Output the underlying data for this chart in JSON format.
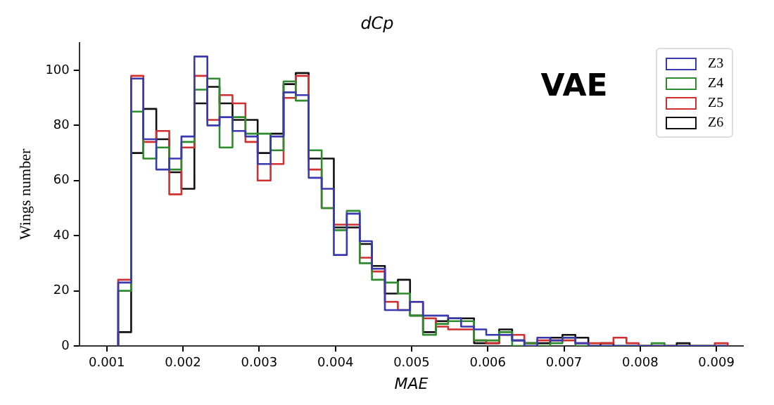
{
  "chart_data": {
    "type": "histogram",
    "title": "dCp",
    "xlabel": "MAE",
    "ylabel": "Wings number",
    "annotations": [
      "VAE"
    ],
    "bins": [
      0.00115,
      0.00132,
      0.00148,
      0.00165,
      0.00182,
      0.00198,
      0.00215,
      0.00232,
      0.00248,
      0.00265,
      0.00282,
      0.00298,
      0.00315,
      0.00332,
      0.00348,
      0.00365,
      0.00382,
      0.00398,
      0.00415,
      0.00432,
      0.00448,
      0.00465,
      0.00482,
      0.00498,
      0.00515,
      0.00532,
      0.00548,
      0.00565,
      0.00582,
      0.00598,
      0.00615,
      0.00632,
      0.00648,
      0.00665,
      0.00682,
      0.00698,
      0.00715,
      0.00732,
      0.00748,
      0.00765,
      0.00782,
      0.00798,
      0.00815,
      0.00832,
      0.00848,
      0.00865,
      0.00882,
      0.00898,
      0.00915
    ],
    "series": [
      {
        "name": "Z3",
        "color": "#3a3ab0",
        "values": [
          23,
          97,
          75,
          64,
          68,
          76,
          105,
          80,
          83,
          78,
          76,
          66,
          76,
          92,
          91,
          61,
          57,
          33,
          48,
          38,
          28,
          13,
          13,
          16,
          11,
          11,
          10,
          7,
          6,
          4,
          4,
          2,
          0,
          3,
          2,
          3,
          1,
          0,
          0,
          0,
          0,
          0,
          0,
          0,
          0,
          0,
          0,
          0
        ]
      },
      {
        "name": "Z4",
        "color": "#2e8b2e",
        "values": [
          20,
          85,
          68,
          72,
          64,
          74,
          93,
          97,
          72,
          83,
          77,
          77,
          71,
          96,
          89,
          71,
          50,
          42,
          49,
          30,
          24,
          23,
          19,
          11,
          4,
          8,
          9,
          9,
          2,
          2,
          5,
          0,
          1,
          0,
          1,
          3,
          0,
          0,
          0,
          0,
          0,
          0,
          1,
          0,
          0,
          0,
          0,
          0
        ]
      },
      {
        "name": "Z5",
        "color": "#d03030",
        "values": [
          24,
          98,
          74,
          78,
          55,
          72,
          98,
          82,
          91,
          88,
          74,
          60,
          66,
          90,
          98,
          64,
          50,
          44,
          44,
          32,
          27,
          16,
          13,
          16,
          10,
          7,
          6,
          6,
          2,
          1,
          4,
          4,
          1,
          2,
          2,
          2,
          1,
          1,
          1,
          3,
          1,
          0,
          0,
          0,
          0,
          0,
          0,
          1
        ]
      },
      {
        "name": "Z6",
        "color": "#111111",
        "values": [
          5,
          70,
          86,
          75,
          63,
          57,
          88,
          94,
          88,
          82,
          82,
          70,
          77,
          95,
          99,
          68,
          68,
          43,
          43,
          37,
          29,
          19,
          24,
          11,
          5,
          9,
          10,
          10,
          1,
          1,
          6,
          2,
          1,
          1,
          3,
          4,
          3,
          0,
          1,
          0,
          0,
          0,
          0,
          0,
          1,
          0,
          0,
          0
        ]
      }
    ],
    "xlim": [
      0.00064,
      0.00935
    ],
    "xticks": [
      0.001,
      0.002,
      0.003,
      0.004,
      0.005,
      0.006,
      0.007,
      0.008,
      0.009
    ],
    "ylim": [
      0,
      110
    ],
    "yticks": [
      0,
      20,
      40,
      60,
      80,
      100
    ],
    "grid": false,
    "legend": "top right"
  }
}
